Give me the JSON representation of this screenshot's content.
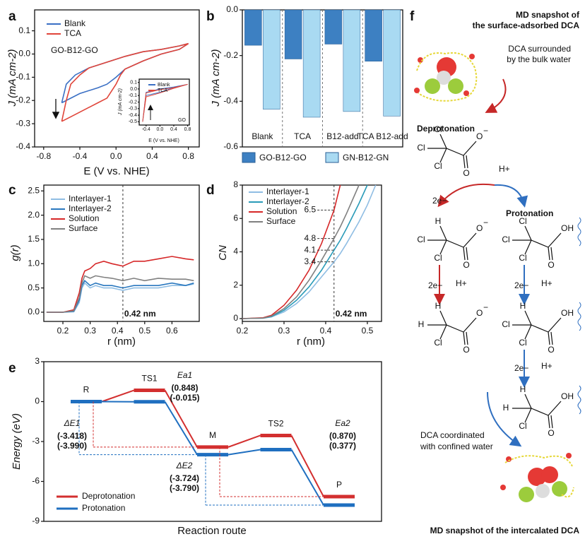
{
  "chart_data": [
    {
      "type": "line",
      "label": "a",
      "xlabel": "E (V vs. NHE)",
      "ylabel": "J (mA cm-2)",
      "annotation": "GO-B12-GO",
      "xlim": [
        -0.9,
        0.92
      ],
      "ylim": [
        -0.4,
        0.19
      ],
      "xticks": [
        -0.8,
        -0.4,
        {
          "value": 0,
          "label": "0.0"
        },
        0.4,
        0.8
      ],
      "yticks": [
        0.1,
        {
          "value": 0,
          "label": "0.0"
        },
        -0.1,
        -0.2,
        -0.3,
        -0.4
      ],
      "series": [
        {
          "name": "Blank",
          "color": "#3a6fc4",
          "x": [
            -0.6,
            -0.55,
            -0.45,
            -0.3,
            -0.1,
            0.1,
            0.3,
            0.5,
            0.7,
            0.8,
            0.7,
            0.5,
            0.3,
            0.1,
            0.0,
            -0.1,
            -0.2,
            -0.4,
            -0.6
          ],
          "values": [
            -0.21,
            -0.13,
            -0.09,
            -0.06,
            -0.035,
            -0.01,
            0.01,
            0.02,
            0.035,
            0.045,
            0.02,
            0.0,
            -0.03,
            -0.065,
            -0.1,
            -0.13,
            -0.145,
            -0.17,
            -0.21
          ]
        },
        {
          "name": "TCA",
          "color": "#e0453a",
          "x": [
            -0.6,
            -0.55,
            -0.5,
            -0.4,
            -0.3,
            -0.1,
            0.1,
            0.3,
            0.5,
            0.7,
            0.8,
            0.7,
            0.5,
            0.3,
            0.1,
            0.05,
            0.0,
            -0.1,
            -0.2,
            -0.3,
            -0.4,
            -0.5,
            -0.6
          ],
          "values": [
            -0.29,
            -0.2,
            -0.13,
            -0.09,
            -0.06,
            -0.035,
            -0.01,
            0.01,
            0.02,
            0.035,
            0.045,
            0.02,
            0.0,
            -0.03,
            -0.065,
            -0.09,
            -0.13,
            -0.19,
            -0.21,
            -0.23,
            -0.25,
            -0.27,
            -0.29
          ]
        }
      ]
    },
    {
      "type": "line",
      "xlabel": "E (V vs. NHE)",
      "ylabel": "J (mA cm-2)",
      "annotation": "GO",
      "xlim": [
        -0.6,
        0.85
      ],
      "ylim": [
        -0.55,
        0.15
      ],
      "xticks": [
        -0.4,
        {
          "value": 0,
          "label": "0.0"
        },
        0.4,
        0.8
      ],
      "yticks": [
        0.1,
        {
          "value": 0,
          "label": "0.0"
        },
        -0.1,
        -0.2,
        -0.3,
        -0.4,
        -0.5
      ],
      "series": [
        {
          "name": "Blank",
          "color": "#3a6fc4",
          "x": [
            -0.5,
            -0.4,
            0,
            0.4,
            0.8,
            0.4,
            0,
            -0.4,
            -0.5
          ],
          "values": [
            -0.5,
            -0.05,
            0.0,
            0.03,
            0.07,
            0.02,
            -0.05,
            -0.1,
            -0.5
          ]
        },
        {
          "name": "TCA",
          "color": "#e0453a",
          "x": [
            -0.5,
            -0.4,
            0,
            0.4,
            0.8,
            0.4,
            0,
            -0.4,
            -0.5
          ],
          "values": [
            -0.5,
            -0.06,
            -0.01,
            0.02,
            0.07,
            0.01,
            -0.06,
            -0.12,
            -0.5
          ]
        }
      ]
    },
    {
      "type": "bar",
      "label": "b",
      "ylabel": "J (mA cm-2)",
      "categories": [
        "Blank",
        "TCA",
        "B12-add",
        "TCA B12-add"
      ],
      "ylim": [
        -0.6,
        0
      ],
      "yticks": [
        {
          "value": 0,
          "label": "0.0"
        },
        -0.2,
        -0.4,
        -0.6
      ],
      "series": [
        {
          "name": "GO-B12-GO",
          "color": "#3d80c2",
          "values": [
            -0.155,
            -0.215,
            -0.15,
            -0.225
          ]
        },
        {
          "name": "GN-B12-GN",
          "color": "#a9daf2",
          "values": [
            -0.435,
            -0.47,
            -0.445,
            -0.465
          ]
        }
      ]
    },
    {
      "type": "line",
      "label": "c",
      "xlabel": "r (nm)",
      "ylabel": "g(r)",
      "vline": 0.42,
      "vline_label": "0.42 nm",
      "xlim": [
        0.13,
        0.7
      ],
      "ylim": [
        -0.19,
        2.62
      ],
      "xticks": [
        0.2,
        0.3,
        0.4,
        0.5,
        0.6
      ],
      "yticks": [
        {
          "value": 0,
          "label": "0.0"
        },
        0.5,
        {
          "value": 1,
          "label": "1.0"
        },
        1.5,
        {
          "value": 2,
          "label": "2.0"
        },
        2.5
      ],
      "x": [
        0.14,
        0.2,
        0.24,
        0.26,
        0.27,
        0.28,
        0.3,
        0.32,
        0.35,
        0.38,
        0.42,
        0.46,
        0.5,
        0.55,
        0.6,
        0.65,
        0.68
      ],
      "series": [
        {
          "name": "Interlayer-1",
          "color": "#8fbde3",
          "values": [
            0,
            0,
            0.01,
            0.2,
            0.5,
            0.6,
            0.5,
            0.55,
            0.5,
            0.5,
            0.45,
            0.5,
            0.5,
            0.5,
            0.55,
            0.55,
            0.58
          ]
        },
        {
          "name": "Interlayer-2",
          "color": "#2a78bf",
          "values": [
            0,
            0,
            0.02,
            0.25,
            0.55,
            0.65,
            0.55,
            0.6,
            0.55,
            0.55,
            0.5,
            0.55,
            0.55,
            0.55,
            0.6,
            0.55,
            0.6
          ]
        },
        {
          "name": "Solution",
          "color": "#d62728",
          "values": [
            0,
            0,
            0.05,
            0.4,
            0.7,
            0.85,
            0.9,
            1.0,
            1.05,
            1.0,
            0.95,
            1.05,
            1.05,
            1.1,
            1.15,
            1.1,
            1.08
          ]
        },
        {
          "name": "Surface",
          "color": "#808080",
          "values": [
            0,
            0,
            0.03,
            0.3,
            0.6,
            0.75,
            0.7,
            0.75,
            0.72,
            0.7,
            0.65,
            0.7,
            0.65,
            0.7,
            0.68,
            0.68,
            0.65
          ]
        }
      ]
    },
    {
      "type": "line",
      "label": "d",
      "xlabel": "r (nm)",
      "ylabel": "CN",
      "vline": 0.42,
      "vline_label": "0.42 nm",
      "markers": [
        6.5,
        4.8,
        4.1,
        3.4
      ],
      "xlim": [
        0.2,
        0.534
      ],
      "ylim": [
        -0.17,
        8
      ],
      "xticks": [
        0.2,
        0.3,
        0.4,
        0.5
      ],
      "yticks": [
        0,
        2,
        4,
        6,
        8
      ],
      "x": [
        0.2,
        0.25,
        0.27,
        0.3,
        0.33,
        0.36,
        0.39,
        0.42,
        0.435,
        0.45,
        0.48,
        0.5,
        0.52
      ],
      "series": [
        {
          "name": "Interlayer-1",
          "color": "#8fbde3",
          "values": [
            0,
            0.02,
            0.1,
            0.4,
            0.9,
            1.6,
            2.5,
            3.4,
            3.9,
            4.5,
            5.8,
            6.8,
            8
          ]
        },
        {
          "name": "Interlayer-2",
          "color": "#2a9bb8",
          "values": [
            0,
            0.03,
            0.12,
            0.5,
            1.1,
            1.9,
            2.9,
            4.1,
            4.7,
            5.4,
            6.9,
            8,
            null
          ]
        },
        {
          "name": "Solution",
          "color": "#d62728",
          "values": [
            0,
            0.05,
            0.2,
            0.8,
            1.7,
            2.9,
            4.5,
            6.5,
            8,
            null,
            null,
            null,
            null
          ]
        },
        {
          "name": "Surface",
          "color": "#808080",
          "values": [
            0,
            0.03,
            0.15,
            0.6,
            1.3,
            2.3,
            3.5,
            4.8,
            5.5,
            6.3,
            8,
            null,
            null
          ]
        }
      ]
    },
    {
      "type": "energy",
      "label": "e",
      "xlabel": "Reaction route",
      "ylabel": "Energy (eV)",
      "categories": [
        "R",
        "TS1",
        "M",
        "TS2",
        "P"
      ],
      "ylim": [
        -9,
        3
      ],
      "yticks": [
        3,
        0,
        -3,
        -6,
        -9
      ],
      "series": [
        {
          "name": "Deprotonation",
          "color": "#d32f2f",
          "values": [
            0,
            0.848,
            -3.418,
            -2.548,
            -7.142
          ]
        },
        {
          "name": "Protonation",
          "color": "#1f6fc0",
          "values": [
            0,
            -0.015,
            -3.99,
            -3.613,
            -7.78
          ]
        }
      ],
      "energy_labels": [
        {
          "name": "Ea1",
          "values": [
            0.848,
            -0.015
          ],
          "value_labels": [
            "(0.848)",
            "(-0.015)"
          ]
        },
        {
          "name": "ΔE1",
          "values": [
            -3.418,
            -3.99
          ],
          "value_labels": [
            "(-3.418)",
            "(-3.990)"
          ]
        },
        {
          "name": "ΔE2",
          "values": [
            -3.724,
            -3.79
          ],
          "value_labels": [
            "(-3.724)",
            "(-3.790)"
          ]
        },
        {
          "name": "Ea2",
          "values": [
            0.87,
            0.377
          ],
          "value_labels": [
            "(0.870)",
            "(0.377)"
          ]
        }
      ]
    }
  ],
  "scheme": {
    "label": "f",
    "top_title": [
      "MD snapshot of",
      "the surface-adsorbed DCA"
    ],
    "top_note": [
      "DCA surrounded",
      "by the bulk water"
    ],
    "deprotonation": "Deprotonation",
    "protonation": "Protonation",
    "bottom_note": [
      "DCA coordinated",
      "with confined water"
    ],
    "bottom_title": "MD snapshot of the intercalated DCA",
    "steps": [
      "H+",
      "2e−",
      "2e−",
      "H+",
      "2e−",
      "H+",
      "2e−",
      "H+"
    ],
    "structures": [
      {
        "substituents": [
          "Cl",
          "Cl",
          "Cl"
        ],
        "upper": "O",
        "charge": "−",
        "carbonyl": "O"
      },
      {
        "substituents": [
          "H",
          "Cl",
          "Cl"
        ],
        "upper": "O",
        "charge": "−",
        "carbonyl": "O"
      },
      {
        "substituents": [
          "Cl",
          "Cl",
          "Cl"
        ],
        "upper": "OH",
        "carbonyl": "O"
      },
      {
        "substituents": [
          "H",
          "H",
          "Cl"
        ],
        "upper": "O",
        "charge": "−",
        "carbonyl": "O"
      },
      {
        "substituents": [
          "H",
          "Cl",
          "Cl"
        ],
        "upper": "OH",
        "carbonyl": "O"
      },
      {
        "substituents": [
          "H",
          "H",
          "Cl"
        ],
        "upper": "OH",
        "carbonyl": "O"
      }
    ]
  }
}
